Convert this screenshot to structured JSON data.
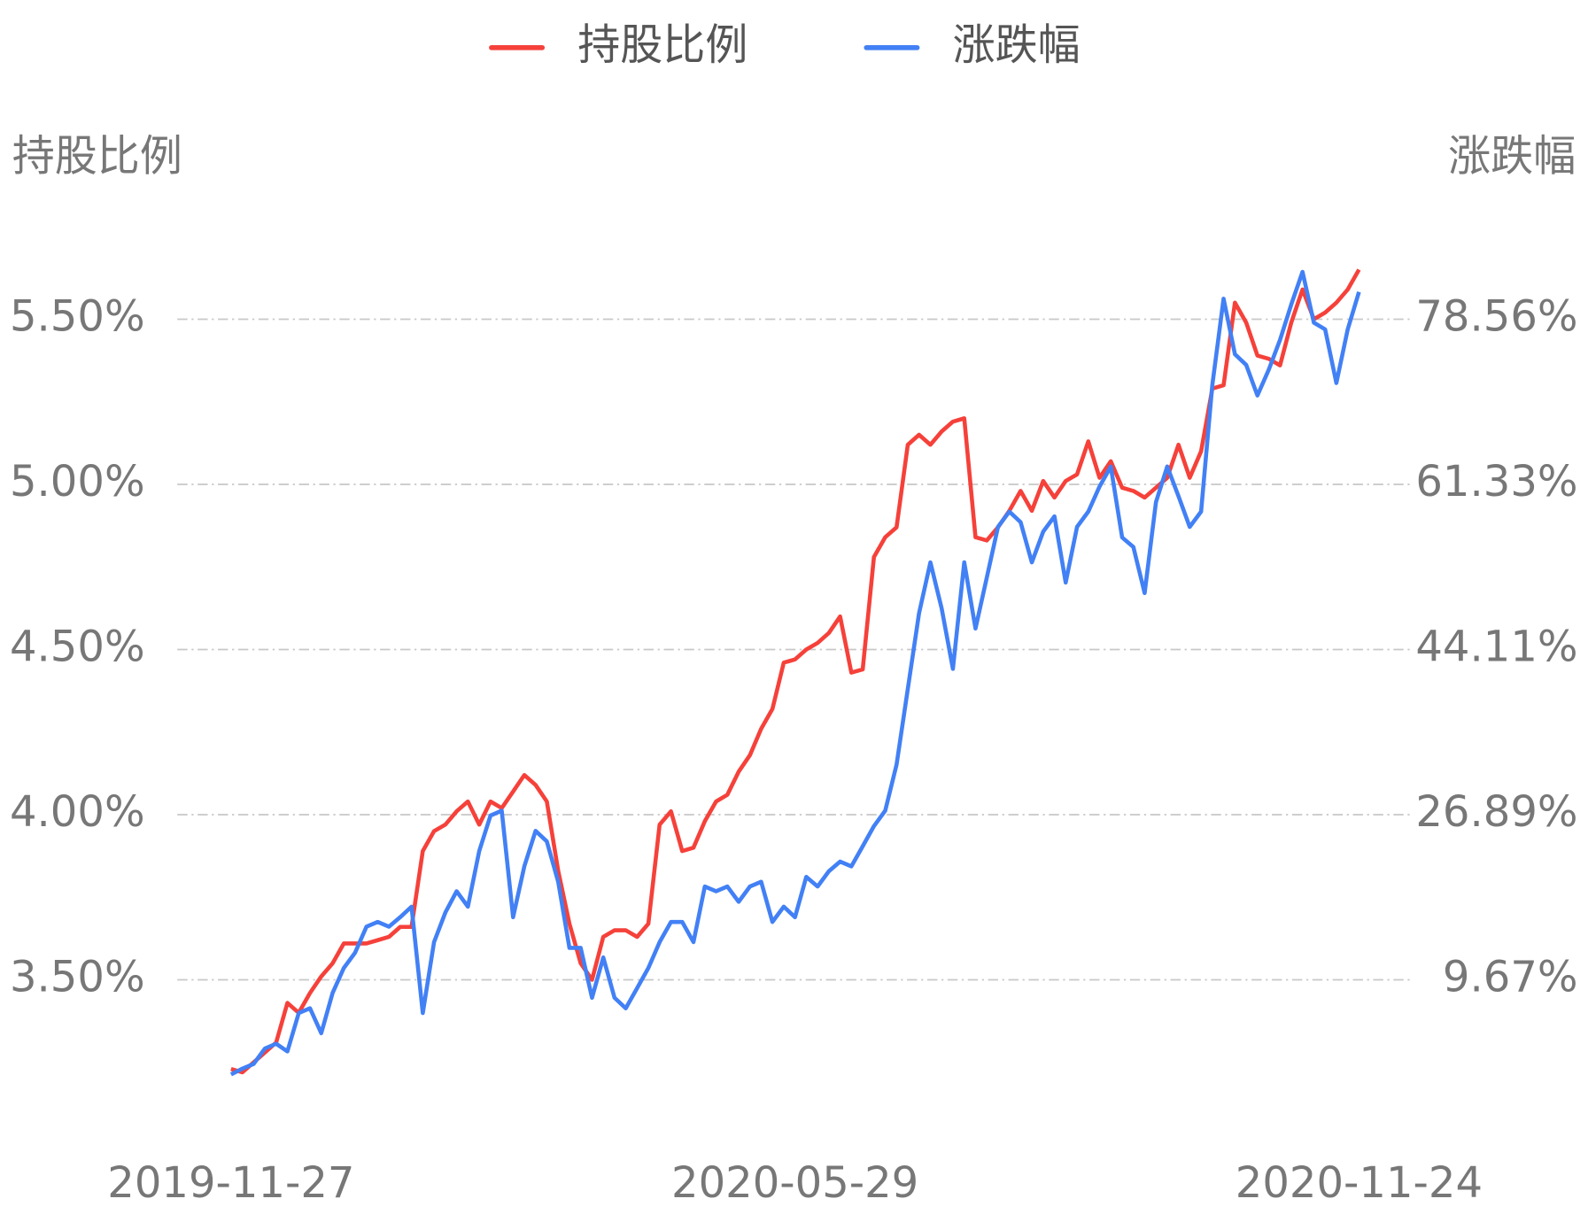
{
  "chart_data": {
    "type": "line",
    "y_label": "持股比例",
    "y2_label": "涨跌幅",
    "categories": [
      "2019-11-27",
      null,
      null,
      null,
      null,
      null,
      null,
      null,
      null,
      null,
      null,
      null,
      null,
      null,
      null,
      null,
      null,
      null,
      null,
      null,
      null,
      null,
      null,
      null,
      null,
      null,
      null,
      null,
      null,
      null,
      null,
      null,
      null,
      null,
      null,
      null,
      null,
      null,
      null,
      null,
      null,
      null,
      null,
      null,
      null,
      null,
      null,
      null,
      null,
      null,
      "2020-05-29",
      null,
      null,
      null,
      null,
      null,
      null,
      null,
      null,
      null,
      null,
      null,
      null,
      null,
      null,
      null,
      null,
      null,
      null,
      null,
      null,
      null,
      null,
      null,
      null,
      null,
      null,
      null,
      null,
      null,
      null,
      null,
      null,
      null,
      null,
      null,
      null,
      null,
      null,
      null,
      null,
      null,
      null,
      null,
      null,
      null,
      null,
      null,
      null,
      null,
      "2020-11-24"
    ],
    "series": [
      {
        "name": "持股比例",
        "color": "#f5413a",
        "axis": "y",
        "values": [
          3.23,
          3.22,
          3.25,
          3.28,
          3.31,
          3.43,
          3.4,
          3.46,
          3.51,
          3.55,
          3.61,
          3.61,
          3.61,
          3.62,
          3.63,
          3.66,
          3.66,
          3.89,
          3.95,
          3.97,
          4.01,
          4.04,
          3.97,
          4.04,
          4.02,
          4.07,
          4.12,
          4.09,
          4.04,
          3.83,
          3.67,
          3.55,
          3.5,
          3.63,
          3.65,
          3.65,
          3.63,
          3.67,
          3.97,
          4.01,
          3.89,
          3.9,
          3.98,
          4.04,
          4.06,
          4.13,
          4.18,
          4.26,
          4.32,
          4.46,
          4.47,
          4.5,
          4.52,
          4.55,
          4.6,
          4.43,
          4.44,
          4.78,
          4.84,
          4.87,
          5.12,
          5.15,
          5.12,
          5.16,
          5.19,
          5.2,
          4.84,
          4.83,
          4.87,
          4.92,
          4.98,
          4.92,
          5.01,
          4.96,
          5.01,
          5.03,
          5.13,
          5.02,
          5.07,
          4.99,
          4.98,
          4.96,
          4.99,
          5.02,
          5.12,
          5.02,
          5.1,
          5.29,
          5.3,
          5.55,
          5.49,
          5.39,
          5.38,
          5.36,
          5.49,
          5.59,
          5.5,
          5.52,
          5.55,
          5.59,
          5.65
        ]
      },
      {
        "name": "涨跌幅",
        "color": "#4280f5",
        "axis": "y2",
        "values": [
          -0.2,
          0.4,
          0.9,
          2.5,
          3.0,
          2.2,
          6.2,
          6.7,
          4.1,
          8.3,
          10.9,
          12.5,
          15.2,
          15.7,
          15.2,
          16.2,
          17.3,
          6.2,
          13.6,
          16.7,
          18.9,
          17.3,
          23.1,
          26.8,
          27.3,
          16.2,
          21.5,
          25.2,
          24.1,
          19.9,
          13.0,
          13.0,
          7.8,
          12.0,
          7.8,
          6.7,
          8.8,
          10.9,
          13.6,
          15.7,
          15.7,
          13.6,
          19.4,
          18.9,
          19.4,
          17.8,
          19.4,
          19.9,
          15.7,
          17.3,
          16.2,
          20.4,
          19.4,
          21.0,
          22.0,
          21.5,
          23.6,
          25.7,
          27.3,
          32.1,
          40.0,
          47.9,
          53.2,
          48.4,
          42.1,
          53.2,
          46.3,
          51.6,
          56.9,
          58.5,
          57.4,
          53.2,
          56.4,
          58.0,
          51.1,
          56.9,
          58.5,
          61.1,
          63.2,
          55.8,
          54.8,
          50.0,
          59.5,
          63.2,
          60.1,
          56.9,
          58.5,
          71.7,
          80.7,
          74.9,
          73.8,
          70.6,
          73.3,
          76.4,
          80.1,
          83.5,
          78.2,
          77.5,
          71.9,
          77.5,
          81.4
        ]
      }
    ],
    "ylim": [
      3.1,
      5.7
    ],
    "yticks": [
      {
        "value": 3.5,
        "label": "3.50%"
      },
      {
        "value": 4.0,
        "label": "4.00%"
      },
      {
        "value": 4.5,
        "label": "4.50%"
      },
      {
        "value": 5.0,
        "label": "5.00%"
      },
      {
        "value": 5.5,
        "label": "5.50%"
      }
    ],
    "y2lim": [
      -4.11,
      85.45
    ],
    "y2ticks": [
      {
        "value": 9.67,
        "label": "9.67%"
      },
      {
        "value": 26.89,
        "label": "26.89%"
      },
      {
        "value": 44.11,
        "label": "44.11%"
      },
      {
        "value": 61.33,
        "label": "61.33%"
      },
      {
        "value": 78.56,
        "label": "78.56%"
      }
    ],
    "grid": true
  }
}
